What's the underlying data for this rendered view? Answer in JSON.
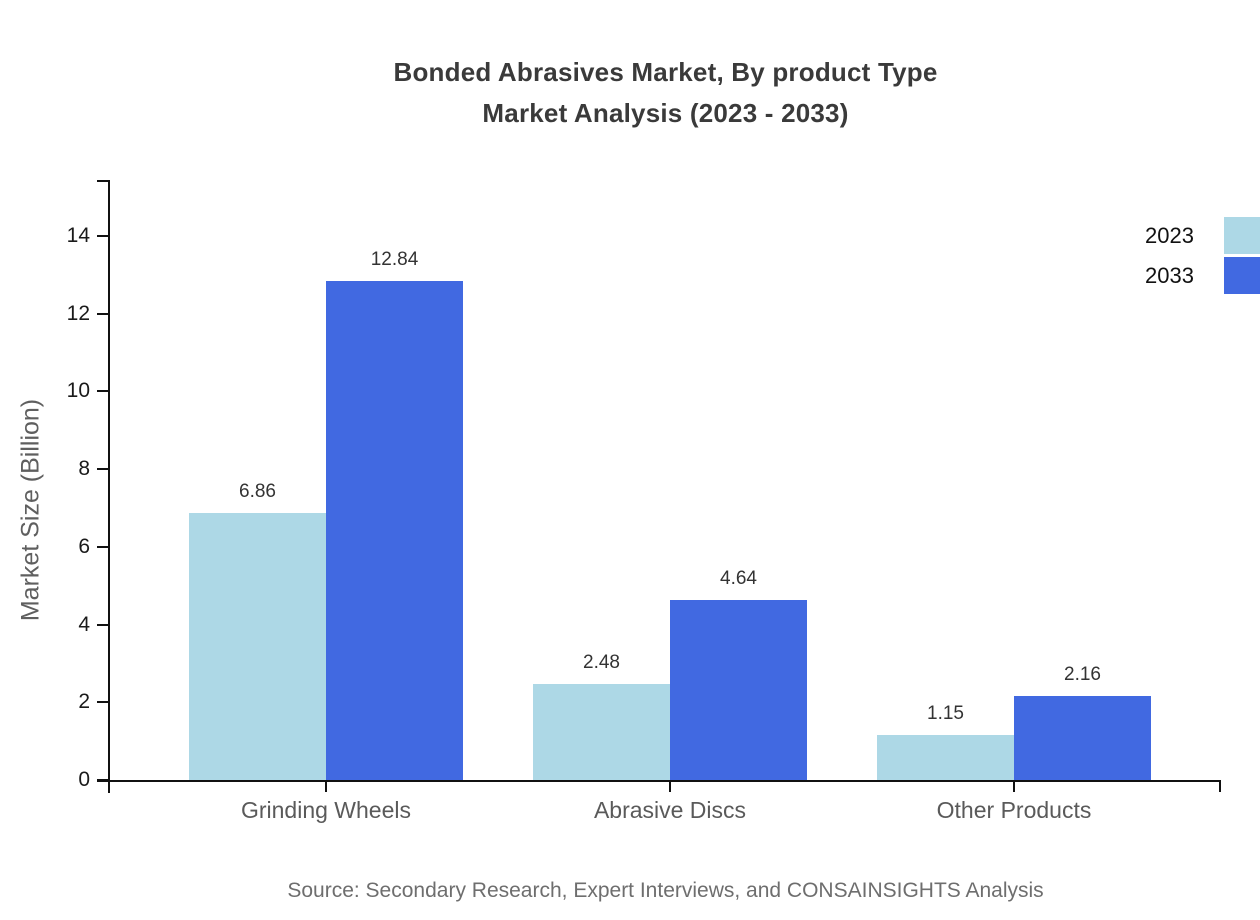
{
  "title": {
    "line1": "Bonded Abrasives Market, By product Type",
    "line2": "Market Analysis (2023 - 2033)"
  },
  "y_axis_label": "Market Size (Billion)",
  "source_note": "Source: Secondary Research, Expert Interviews, and CONSAINSIGHTS Analysis",
  "colors": {
    "series_2023": "#ADD8E6",
    "series_2033": "#4169E1",
    "axis": "#111111",
    "title_text": "#3a3a3a",
    "axis_label_text": "#5a5a5a",
    "value_label_text": "#333333",
    "source_text": "#6e6e6e"
  },
  "legend": {
    "items": [
      {
        "label": "2023",
        "color": "#ADD8E6"
      },
      {
        "label": "2033",
        "color": "#4169E1"
      }
    ]
  },
  "chart_data": {
    "type": "bar",
    "title": "Bonded Abrasives Market, By product Type Market Analysis (2023 - 2033)",
    "categories": [
      "Grinding Wheels",
      "Abrasive Discs",
      "Other Products"
    ],
    "series": [
      {
        "name": "2023",
        "color": "#ADD8E6",
        "values": [
          6.86,
          2.48,
          1.15
        ]
      },
      {
        "name": "2033",
        "color": "#4169E1",
        "values": [
          12.84,
          4.64,
          2.16
        ]
      }
    ],
    "value_labels": [
      [
        "6.86",
        "2.48",
        "1.15"
      ],
      [
        "12.84",
        "4.64",
        "2.16"
      ]
    ],
    "xlabel": "",
    "ylabel": "Market Size (Billion)",
    "yticks": [
      0,
      2,
      4,
      6,
      8,
      10,
      12,
      14
    ],
    "ylim": [
      0,
      15.44
    ],
    "grid": false,
    "legend_position": "top-right-outside",
    "bar_value_labels_shown": true
  }
}
